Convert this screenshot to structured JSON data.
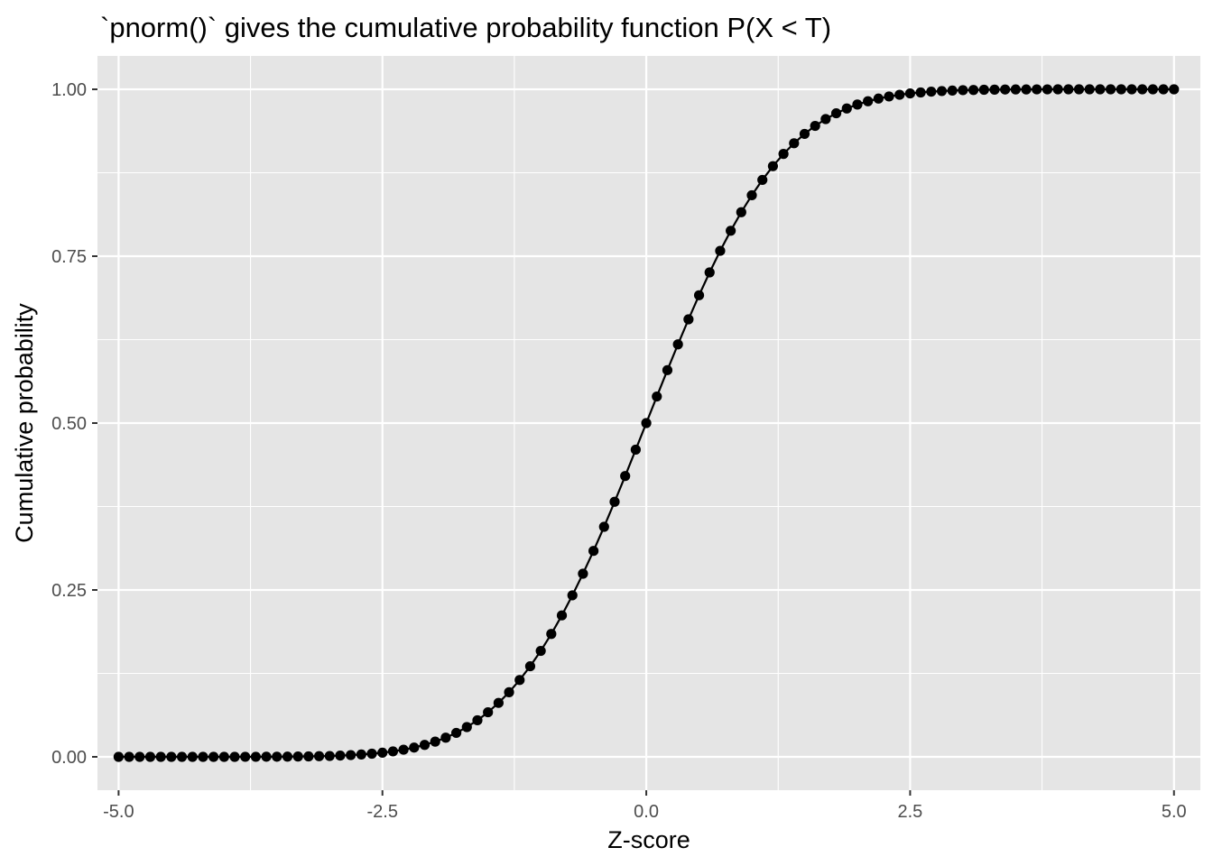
{
  "chart_data": {
    "type": "line",
    "title": "`pnorm()` gives the cumulative probability function P(X < T)",
    "xlabel": "Z-score",
    "ylabel": "Cumulative probability",
    "xlim": [
      -5.2,
      5.25
    ],
    "ylim": [
      -0.05,
      1.05
    ],
    "x_ticks": [
      -5.0,
      -2.5,
      0.0,
      2.5,
      5.0
    ],
    "x_tick_labels": [
      "-5.0",
      "-2.5",
      "0.0",
      "2.5",
      "5.0"
    ],
    "y_ticks": [
      0.0,
      0.25,
      0.5,
      0.75,
      1.0
    ],
    "y_tick_labels": [
      "0.00",
      "0.25",
      "0.50",
      "0.75",
      "1.00"
    ],
    "grid": true,
    "legend": "none",
    "colors": {
      "panel_background": "#e5e5e5",
      "grid_line": "#ffffff",
      "series": "#000000",
      "tick_text": "#4d4d4d",
      "tick_mark": "#333333"
    },
    "series": [
      {
        "x": [
          -5.0,
          -4.9,
          -4.8,
          -4.7,
          -4.6,
          -4.5,
          -4.4,
          -4.3,
          -4.2,
          -4.1,
          -4.0,
          -3.9,
          -3.8,
          -3.7,
          -3.6,
          -3.5,
          -3.4,
          -3.3,
          -3.2,
          -3.1,
          -3.0,
          -2.9,
          -2.8,
          -2.7,
          -2.6,
          -2.5,
          -2.4,
          -2.3,
          -2.2,
          -2.1,
          -2.0,
          -1.9,
          -1.8,
          -1.7,
          -1.6,
          -1.5,
          -1.4,
          -1.3,
          -1.2,
          -1.1,
          -1.0,
          -0.9,
          -0.8,
          -0.7,
          -0.6,
          -0.5,
          -0.4,
          -0.3,
          -0.2,
          -0.1,
          0.0,
          0.1,
          0.2,
          0.3,
          0.4,
          0.5,
          0.6,
          0.7,
          0.8,
          0.9,
          1.0,
          1.1,
          1.2,
          1.3,
          1.4,
          1.5,
          1.6,
          1.7,
          1.8,
          1.9,
          2.0,
          2.1,
          2.2,
          2.3,
          2.4,
          2.5,
          2.6,
          2.7,
          2.8,
          2.9,
          3.0,
          3.1,
          3.2,
          3.3,
          3.4,
          3.5,
          3.6,
          3.7,
          3.8,
          3.9,
          4.0,
          4.1,
          4.2,
          4.3,
          4.4,
          4.5,
          4.6,
          4.7,
          4.8,
          4.9,
          5.0
        ],
        "y": [
          0.0,
          0.0,
          0.0,
          0.0,
          0.0,
          0.0,
          0.0,
          0.0,
          0.0,
          0.0,
          0.0,
          0.0,
          0.0001,
          0.0001,
          0.0002,
          0.0002,
          0.0003,
          0.0005,
          0.0007,
          0.001,
          0.0013,
          0.0019,
          0.0026,
          0.0035,
          0.0047,
          0.0062,
          0.0082,
          0.0107,
          0.0139,
          0.0179,
          0.0228,
          0.0287,
          0.0359,
          0.0446,
          0.0548,
          0.0668,
          0.0808,
          0.0968,
          0.1151,
          0.1357,
          0.1587,
          0.1841,
          0.2119,
          0.242,
          0.2743,
          0.3085,
          0.3446,
          0.3821,
          0.4207,
          0.4602,
          0.5,
          0.5398,
          0.5793,
          0.6179,
          0.6554,
          0.6915,
          0.7257,
          0.758,
          0.7881,
          0.8159,
          0.8413,
          0.8643,
          0.8849,
          0.9032,
          0.9192,
          0.9332,
          0.9452,
          0.9554,
          0.9641,
          0.9713,
          0.9772,
          0.9821,
          0.9861,
          0.9893,
          0.9918,
          0.9938,
          0.9953,
          0.9965,
          0.9974,
          0.9981,
          0.9987,
          0.999,
          0.9993,
          0.9995,
          0.9997,
          0.9998,
          0.9998,
          0.9999,
          0.9999,
          1.0,
          1.0,
          1.0,
          1.0,
          1.0,
          1.0,
          1.0,
          1.0,
          1.0,
          1.0,
          1.0,
          1.0
        ]
      }
    ]
  }
}
